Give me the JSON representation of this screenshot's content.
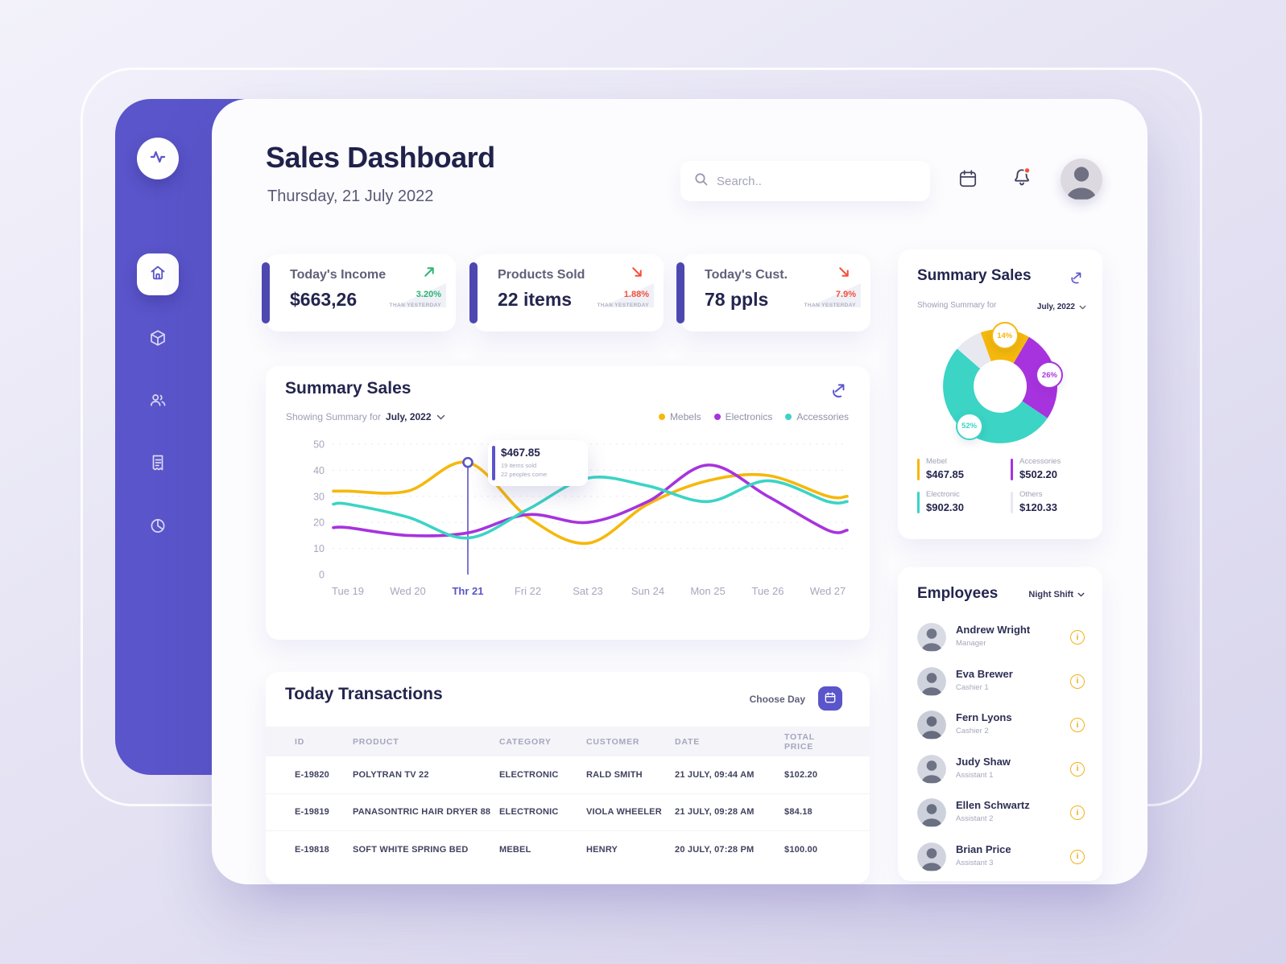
{
  "theme": {
    "accent": "#5A55CA",
    "yellow": "#F5B80C",
    "purple": "#A733DE",
    "teal": "#3BD4C5",
    "green": "#2BB673",
    "red": "#F4503A"
  },
  "sidebar": {
    "logo_icon": "pulse-logo",
    "items": [
      {
        "icon": "home-icon",
        "active": true
      },
      {
        "icon": "package-icon",
        "active": false
      },
      {
        "icon": "customers-icon",
        "active": false
      },
      {
        "icon": "receipt-icon",
        "active": false
      },
      {
        "icon": "pie-chart-icon",
        "active": false
      }
    ]
  },
  "header": {
    "title": "Sales Dashboard",
    "date": "Thursday, 21 July 2022",
    "search_placeholder": "Search.."
  },
  "stats": [
    {
      "label": "Today's Income",
      "value": "$663,26",
      "change": "3.20%",
      "caption": "THAN YESTERDAY",
      "trend": "up"
    },
    {
      "label": "Products Sold",
      "value": "22 items",
      "change": "1.88%",
      "caption": "THAN YESTERDAY",
      "trend": "down"
    },
    {
      "label": "Today's Cust.",
      "value": "78 ppls",
      "change": "7.9%",
      "caption": "THAN YESTERDAY",
      "trend": "down"
    }
  ],
  "summary_chart": {
    "title": "Summary Sales",
    "filter_label": "Showing Summary for",
    "filter_value": "July, 2022"
  },
  "chart_data": [
    {
      "type": "line",
      "title": "Summary Sales",
      "period": "July, 2022",
      "x": [
        "Tue 19",
        "Wed 20",
        "Thr 21",
        "Fri 22",
        "Sat 23",
        "Sun 24",
        "Mon 25",
        "Tue 26",
        "Wed 27"
      ],
      "ylim": [
        0,
        50
      ],
      "yticks": [
        0,
        10,
        20,
        30,
        40,
        50
      ],
      "grid": "dashed-horizontal",
      "legend_position": "top-right",
      "highlight_x": "Thr 21",
      "series": [
        {
          "name": "Mebels",
          "color": "#F5B80C",
          "values": [
            32,
            32,
            43,
            22,
            12,
            27,
            36,
            38,
            30
          ]
        },
        {
          "name": "Electronics",
          "color": "#A733DE",
          "values": [
            18,
            15,
            16,
            23,
            20,
            28,
            42,
            30,
            17
          ]
        },
        {
          "name": "Accessories",
          "color": "#3BD4C5",
          "values": [
            27,
            22,
            14,
            25,
            37,
            34,
            28,
            36,
            28
          ]
        }
      ],
      "annotation": {
        "x": "Thr 21",
        "series": "Mebels",
        "value": "$467.85",
        "sub1": "19 items sold",
        "sub2": "22 peoples come"
      }
    },
    {
      "type": "pie",
      "title": "Summary Sales",
      "period": "July, 2022",
      "slices": [
        {
          "label": "Mebel",
          "pct": 14,
          "badge": true,
          "amount": "$467.85",
          "color": "#F5B80C"
        },
        {
          "label": "Accessories",
          "pct": 26,
          "badge": true,
          "amount": "$502.20",
          "color": "#A733DE"
        },
        {
          "label": "Electronic",
          "pct": 52,
          "badge": true,
          "amount": "$902.30",
          "color": "#3BD4C5"
        },
        {
          "label": "Others",
          "pct": 8,
          "badge": false,
          "amount": "$120.33",
          "color": "#E8E8F1"
        }
      ]
    }
  ],
  "donut_card": {
    "title": "Summary Sales",
    "filter_label": "Showing Summary for",
    "filter_value": "July, 2022"
  },
  "transactions": {
    "title": "Today Transactions",
    "choose_day_label": "Choose Day",
    "columns": [
      "ID",
      "PRODUCT",
      "CATEGORY",
      "CUSTOMER",
      "DATE",
      "TOTAL PRICE"
    ],
    "rows": [
      [
        "E-19820",
        "POLYTRAN TV 22",
        "ELECTRONIC",
        "RALD SMITH",
        "21 JULY, 09:44 AM",
        "$102.20"
      ],
      [
        "E-19819",
        "PANASONTRIC HAIR DRYER 88",
        "ELECTRONIC",
        "VIOLA WHEELER",
        "21 JULY, 09:28 AM",
        "$84.18"
      ],
      [
        "E-19818",
        "SOFT WHITE SPRING BED",
        "MEBEL",
        "HENRY",
        "20 JULY, 07:28 PM",
        "$100.00"
      ]
    ]
  },
  "employees": {
    "title": "Employees",
    "shift_filter": "Night Shift",
    "list": [
      {
        "name": "Andrew Wright",
        "role": "Manager"
      },
      {
        "name": "Eva Brewer",
        "role": "Cashier 1"
      },
      {
        "name": "Fern Lyons",
        "role": "Cashier 2"
      },
      {
        "name": "Judy Shaw",
        "role": "Assistant 1"
      },
      {
        "name": "Ellen Schwartz",
        "role": "Assistant 2"
      },
      {
        "name": "Brian Price",
        "role": "Assistant 3"
      }
    ]
  }
}
